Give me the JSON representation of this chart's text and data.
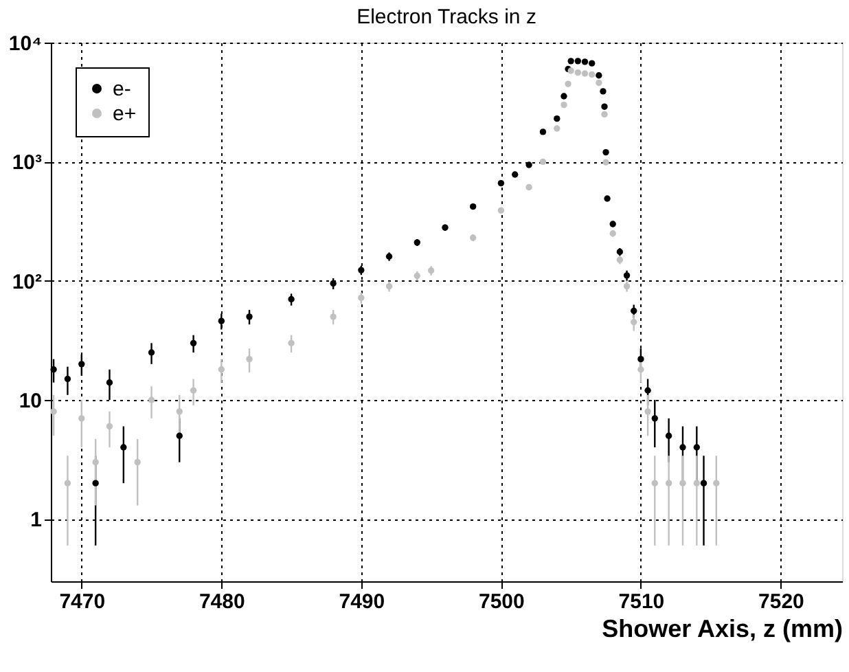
{
  "chart_data": {
    "type": "scatter",
    "title": "Electron Tracks in z",
    "xlabel": "Shower Axis, z (mm)",
    "xlim": [
      7467.8,
      7524.4
    ],
    "xticks": [
      7470,
      7480,
      7490,
      7500,
      7510,
      7520
    ],
    "ylim": [
      0.3,
      10000
    ],
    "yticks": [
      1,
      10,
      {
        "value": 100,
        "label": "10²"
      },
      {
        "value": 1000,
        "label": "10³"
      },
      {
        "value": 10000,
        "label": "10⁴"
      }
    ],
    "log": "y",
    "grid": true,
    "legend": "top left",
    "marker": "circle",
    "series": [
      {
        "name": "e-",
        "color": "#000000",
        "x": [
          7468,
          7469,
          7470,
          7471,
          7472,
          7473,
          7475,
          7477,
          7478,
          7480,
          7482,
          7485,
          7488,
          7490,
          7492,
          7494,
          7496,
          7498,
          7500,
          7501,
          7502,
          7503,
          7504,
          7504.5,
          7504.8,
          7505,
          7505.5,
          7506,
          7506.5,
          7507,
          7507.3,
          7507.4,
          7507.5,
          7507.6,
          7508,
          7508.5,
          7509,
          7509.5,
          7510,
          7510.5,
          7511,
          7512,
          7513,
          7514,
          7514.5
        ],
        "values": [
          18,
          15,
          20,
          2,
          14,
          4,
          25,
          5,
          30,
          46,
          50,
          70,
          95,
          123,
          160,
          210,
          280,
          420,
          660,
          780,
          940,
          1780,
          2300,
          3550,
          6000,
          7000,
          7000,
          6900,
          6700,
          5300,
          3900,
          2900,
          1200,
          490,
          300,
          175,
          111,
          56,
          22,
          12,
          7,
          5,
          4,
          4,
          2
        ],
        "errors": [
          4,
          4,
          4,
          1.4,
          4,
          2,
          5,
          2,
          5,
          7,
          7,
          8,
          10,
          11,
          13,
          14,
          17,
          20,
          26,
          28,
          31,
          42,
          48,
          60,
          77,
          84,
          84,
          83,
          82,
          73,
          62,
          54,
          35,
          22,
          17,
          13,
          11,
          7,
          5,
          3,
          3,
          2,
          2,
          2,
          1.4
        ]
      },
      {
        "name": "e+",
        "color": "#c0c0c0",
        "x": [
          7468,
          7469,
          7470,
          7471,
          7472,
          7474,
          7475,
          7477,
          7478,
          7480,
          7482,
          7485,
          7488,
          7490,
          7492,
          7494,
          7495,
          7498,
          7500,
          7502,
          7503,
          7504,
          7504.5,
          7504.8,
          7505,
          7505.5,
          7506,
          7506.5,
          7507,
          7507.4,
          7507.5,
          7508,
          7508.5,
          7509,
          7509.5,
          7510,
          7510.5,
          7511,
          7512,
          7513,
          7514,
          7515.4
        ],
        "values": [
          8,
          2,
          7,
          3,
          6,
          3,
          10,
          8,
          12,
          18,
          22,
          30,
          50,
          72,
          90,
          110,
          122,
          230,
          390,
          610,
          1000,
          1900,
          3000,
          4500,
          5800,
          5600,
          5500,
          5400,
          4600,
          2500,
          990,
          250,
          150,
          90,
          45,
          18,
          8,
          2,
          2,
          2,
          2,
          2
        ],
        "errors": [
          3,
          1.4,
          3,
          1.7,
          2,
          1.7,
          3,
          3,
          3,
          4,
          5,
          5,
          7,
          8,
          9,
          10,
          11,
          15,
          20,
          25,
          32,
          44,
          55,
          67,
          76,
          75,
          74,
          73,
          68,
          50,
          31,
          16,
          12,
          9,
          7,
          4,
          3,
          1.4,
          1.4,
          1.4,
          1.4,
          1.4
        ]
      }
    ]
  }
}
